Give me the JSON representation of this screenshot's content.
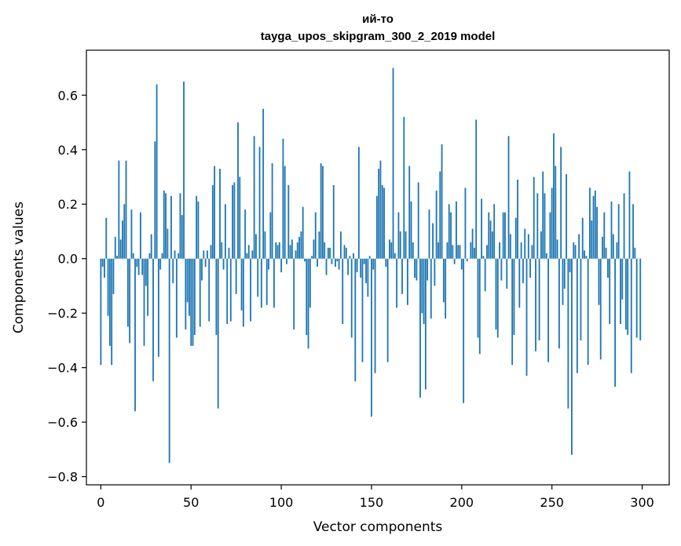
{
  "chart_data": {
    "type": "bar",
    "title": "ий-то",
    "subtitle": "tayga_upos_skipgram_300_2_2019 model",
    "xlabel": "Vector components",
    "ylabel": "Components values",
    "xlim": [
      -8,
      315
    ],
    "ylim": [
      -0.83,
      0.765
    ],
    "xticks": [
      0,
      50,
      100,
      150,
      200,
      250,
      300
    ],
    "yticks": [
      -0.8,
      -0.6,
      -0.4,
      -0.2,
      0.0,
      0.2,
      0.4,
      0.6
    ],
    "ytick_labels": [
      "−0.8",
      "−0.6",
      "−0.4",
      "−0.2",
      "0.0",
      "0.2",
      "0.4",
      "0.6"
    ],
    "color": "#1f77b4",
    "values": [
      -0.39,
      -0.03,
      -0.07,
      0.15,
      -0.21,
      -0.32,
      -0.39,
      -0.13,
      0.08,
      0.01,
      0.36,
      0.07,
      0.14,
      0.2,
      0.36,
      -0.25,
      -0.31,
      0.18,
      0.02,
      -0.56,
      -0.03,
      -0.06,
      0.17,
      -0.06,
      -0.32,
      -0.1,
      -0.21,
      0.02,
      0.09,
      -0.45,
      0.43,
      0.64,
      -0.36,
      -0.04,
      0.02,
      0.25,
      0.24,
      0.11,
      -0.75,
      0.23,
      -0.09,
      0.03,
      -0.29,
      0.02,
      0.24,
      0.16,
      0.65,
      -0.26,
      -0.16,
      -0.21,
      -0.32,
      -0.32,
      -0.28,
      0.23,
      0.21,
      -0.25,
      -0.08,
      0.03,
      -0.03,
      0.03,
      -0.23,
      0.05,
      0.27,
      0.34,
      -0.28,
      -0.55,
      0.33,
      0.06,
      -0.04,
      0.2,
      -0.24,
      0.04,
      -0.23,
      0.27,
      0.28,
      -0.13,
      0.5,
      0.3,
      -0.19,
      -0.25,
      0.18,
      0.02,
      0.05,
      -0.23,
      0.03,
      0.45,
      0.09,
      -0.14,
      0.41,
      -0.18,
      0.55,
      0.1,
      -0.17,
      -0.04,
      0.17,
      0.35,
      -0.18,
      0.06,
      0.05,
      0.06,
      -0.05,
      0.44,
      0.34,
      -0.02,
      0.27,
      0.05,
      0.07,
      -0.26,
      0.03,
      0.06,
      0.08,
      0.1,
      0.19,
      -0.01,
      -0.28,
      -0.33,
      -0.18,
      0.01,
      0.07,
      0.17,
      -0.03,
      0.1,
      0.35,
      0.34,
      0.06,
      -0.06,
      0.04,
      0.04,
      -0.02,
      0.27,
      -0.03,
      -0.01,
      -0.04,
      0.1,
      -0.24,
      0.05,
      0.04,
      -0.06,
      0.01,
      -0.29,
      0.02,
      -0.45,
      -0.05,
      0.41,
      -0.07,
      -0.38,
      -0.02,
      -0.09,
      -0.14,
      0.01,
      -0.58,
      -0.04,
      -0.42,
      0.23,
      0.33,
      0.36,
      0.27,
      0.26,
      -0.03,
      -0.38,
      0.07,
      0.06,
      0.7,
      0.02,
      -0.18,
      0.17,
      0.1,
      -0.13,
      0.52,
      0.1,
      -0.17,
      0.34,
      0.21,
      0.06,
      -0.07,
      -0.08,
      0.28,
      -0.51,
      -0.2,
      -0.24,
      -0.48,
      -0.08,
      0.18,
      -0.22,
      0.13,
      -0.1,
      0.25,
      0.06,
      0.32,
      0.42,
      -0.16,
      -0.22,
      0.06,
      0.2,
      0.17,
      0.05,
      -0.02,
      0.21,
      0.05,
      0.05,
      -0.04,
      -0.53,
      0.26,
      -0.01,
      0.0,
      0.06,
      0.11,
      0.04,
      0.51,
      -0.29,
      -0.35,
      0.22,
      0.01,
      -0.12,
      0.05,
      0.17,
      0.14,
      0.1,
      0.2,
      -0.26,
      -0.29,
      0.06,
      -0.08,
      0.17,
      0.17,
      -0.11,
      0.45,
      0.09,
      -0.39,
      -0.28,
      0.15,
      0.29,
      -0.18,
      0.06,
      -0.09,
      0.11,
      -0.43,
      0.09,
      -0.07,
      0.05,
      0.3,
      -0.34,
      0.24,
      -0.3,
      0.1,
      0.32,
      0.24,
      0.02,
      -0.38,
      0.17,
      0.26,
      0.46,
      0.34,
      0.07,
      -0.33,
      0.41,
      -0.17,
      -0.11,
      0.31,
      -0.55,
      -0.05,
      -0.72,
      0.06,
      0.05,
      -0.42,
      0.09,
      -0.3,
      0.15,
      0.03,
      0.01,
      -0.39,
      0.26,
      0.14,
      0.23,
      0.25,
      0.19,
      -0.17,
      -0.37,
      0.08,
      0.17,
      0.04,
      -0.07,
      -0.24,
      0.21,
      0.09,
      -0.47,
      0.06,
      0.2,
      -0.24,
      -0.15,
      0.24,
      -0.26,
      -0.28,
      0.32,
      -0.42,
      0.2,
      0.04,
      -0.29,
      0.0,
      -0.3
    ]
  }
}
